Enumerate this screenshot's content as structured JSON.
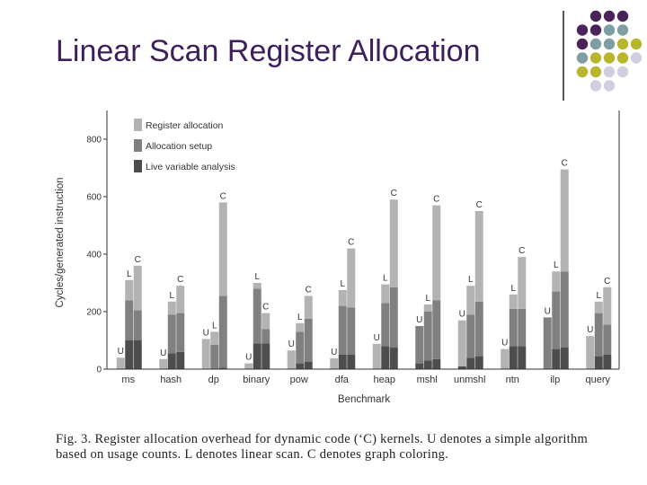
{
  "slide": {
    "title": "Linear Scan Register Allocation",
    "caption_line1": "Fig. 3. Register allocation overhead for dynamic code (‘C) kernels. U denotes a simple algorithm",
    "caption_line2": "based on usage counts. L denotes linear scan. C denotes graph coloring."
  },
  "decoration": {
    "dot_colors": {
      "purple": "#4a235a",
      "teal": "#7f9ea3",
      "olive": "#b8b62c",
      "lavender": "#d0cee0"
    }
  },
  "chart_data": {
    "type": "bar",
    "stacked": true,
    "xlabel": "Benchmark",
    "ylabel": "Cycles/generated instruction",
    "ylim": [
      0,
      900
    ],
    "yticks": [
      "0",
      "200",
      "400",
      "600",
      "800"
    ],
    "ytick_values": [
      0,
      200,
      400,
      600,
      800
    ],
    "legend_position": "top-left",
    "legend": [
      {
        "name": "Register allocation",
        "color": "#b3b3b3"
      },
      {
        "name": "Allocation setup",
        "color": "#808080"
      },
      {
        "name": "Live variable analysis",
        "color": "#4d4d4d"
      }
    ],
    "categories": [
      "ms",
      "hash",
      "dp",
      "binary",
      "pow",
      "dfa",
      "heap",
      "mshl",
      "unmshl",
      "ntn",
      "ilp",
      "query"
    ],
    "benchmarks": [
      {
        "name": "ms",
        "bars": [
          {
            "label": "U",
            "live": 0,
            "setup": 0,
            "reg": 40
          },
          {
            "label": "L",
            "live": 100,
            "setup": 140,
            "reg": 70
          },
          {
            "label": "C",
            "live": 100,
            "setup": 105,
            "reg": 155
          }
        ]
      },
      {
        "name": "hash",
        "bars": [
          {
            "label": "U",
            "live": 0,
            "setup": 0,
            "reg": 35
          },
          {
            "label": "L",
            "live": 55,
            "setup": 135,
            "reg": 45
          },
          {
            "label": "C",
            "live": 60,
            "setup": 135,
            "reg": 95
          }
        ]
      },
      {
        "name": "dp",
        "bars": [
          {
            "label": "U",
            "live": 0,
            "setup": 0,
            "reg": 105
          },
          {
            "label": "L",
            "live": 0,
            "setup": 85,
            "reg": 45
          },
          {
            "label": "C",
            "live": 5,
            "setup": 250,
            "reg": 325
          }
        ]
      },
      {
        "name": "binary",
        "bars": [
          {
            "label": "U",
            "live": 0,
            "setup": 0,
            "reg": 20
          },
          {
            "label": "L",
            "live": 90,
            "setup": 190,
            "reg": 20
          },
          {
            "label": "C",
            "live": 90,
            "setup": 50,
            "reg": 55
          }
        ]
      },
      {
        "name": "pow",
        "bars": [
          {
            "label": "U",
            "live": 0,
            "setup": 0,
            "reg": 65
          },
          {
            "label": "L",
            "live": 20,
            "setup": 110,
            "reg": 30
          },
          {
            "label": "C",
            "live": 25,
            "setup": 150,
            "reg": 80
          }
        ]
      },
      {
        "name": "dfa",
        "bars": [
          {
            "label": "U",
            "live": 0,
            "setup": 0,
            "reg": 38
          },
          {
            "label": "L",
            "live": 50,
            "setup": 170,
            "reg": 55
          },
          {
            "label": "C",
            "live": 50,
            "setup": 165,
            "reg": 205
          }
        ]
      },
      {
        "name": "heap",
        "bars": [
          {
            "label": "U",
            "live": 0,
            "setup": 0,
            "reg": 88
          },
          {
            "label": "L",
            "live": 80,
            "setup": 150,
            "reg": 65
          },
          {
            "label": "C",
            "live": 75,
            "setup": 210,
            "reg": 305
          }
        ]
      },
      {
        "name": "mshl",
        "bars": [
          {
            "label": "U",
            "live": 20,
            "setup": 130,
            "reg": 0
          },
          {
            "label": "L",
            "live": 30,
            "setup": 170,
            "reg": 25
          },
          {
            "label": "C",
            "live": 35,
            "setup": 205,
            "reg": 330
          }
        ]
      },
      {
        "name": "unmshl",
        "bars": [
          {
            "label": "U",
            "live": 10,
            "setup": 0,
            "reg": 160
          },
          {
            "label": "L",
            "live": 40,
            "setup": 150,
            "reg": 100
          },
          {
            "label": "C",
            "live": 45,
            "setup": 190,
            "reg": 315
          }
        ]
      },
      {
        "name": "ntn",
        "bars": [
          {
            "label": "U",
            "live": 0,
            "setup": 0,
            "reg": 70
          },
          {
            "label": "L",
            "live": 80,
            "setup": 130,
            "reg": 50
          },
          {
            "label": "C",
            "live": 80,
            "setup": 130,
            "reg": 180
          }
        ]
      },
      {
        "name": "ilp",
        "bars": [
          {
            "label": "U",
            "live": 0,
            "setup": 180,
            "reg": 0
          },
          {
            "label": "L",
            "live": 70,
            "setup": 200,
            "reg": 70
          },
          {
            "label": "C",
            "live": 75,
            "setup": 265,
            "reg": 355
          }
        ]
      },
      {
        "name": "query",
        "bars": [
          {
            "label": "U",
            "live": 0,
            "setup": 0,
            "reg": 115
          },
          {
            "label": "L",
            "live": 45,
            "setup": 150,
            "reg": 40
          },
          {
            "label": "C",
            "live": 50,
            "setup": 105,
            "reg": 130
          }
        ]
      }
    ]
  }
}
